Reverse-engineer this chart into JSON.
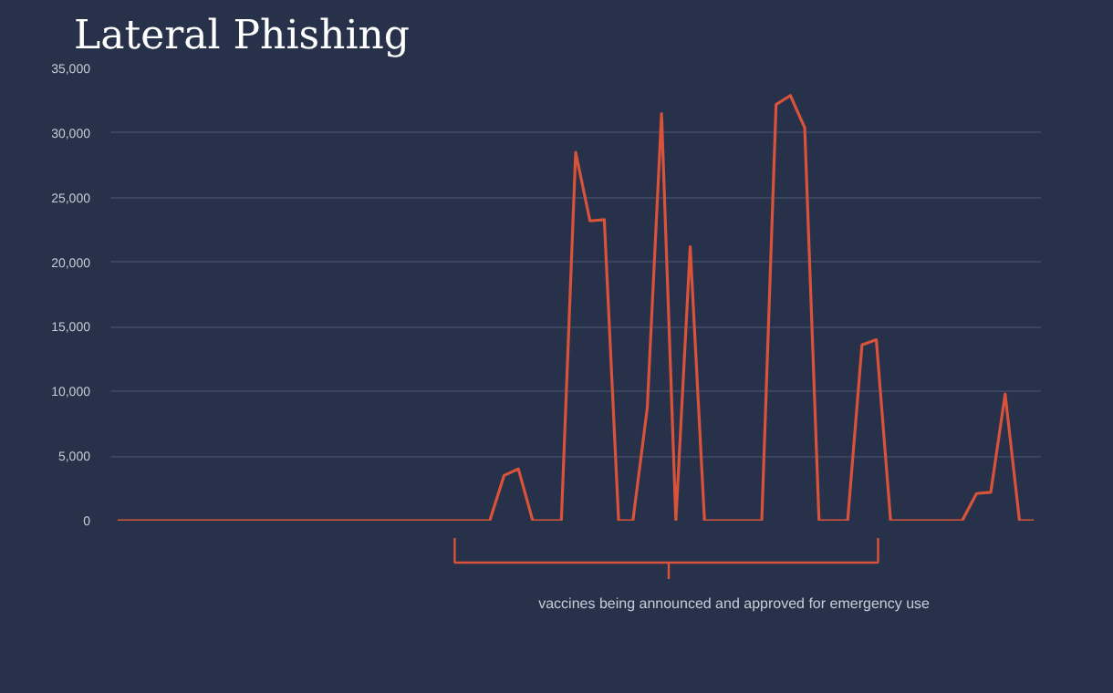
{
  "chart_data": {
    "type": "line",
    "title": "Lateral Phishing",
    "categories": [
      null,
      null,
      null,
      null,
      null,
      null,
      null,
      null,
      null,
      null,
      null,
      null,
      null,
      null,
      null,
      null,
      null,
      null,
      null,
      null,
      null,
      null,
      null,
      null,
      null,
      null,
      null,
      null,
      null,
      null,
      null,
      null,
      null,
      null,
      null,
      null,
      null,
      null,
      null,
      null,
      null,
      null,
      null,
      null,
      null,
      null,
      null,
      null,
      null,
      null,
      null,
      null,
      null,
      null,
      null,
      null,
      null,
      null,
      null,
      null,
      null,
      null,
      null,
      null,
      null
    ],
    "series": [
      {
        "color": "#d9533b",
        "values": [
          0,
          0,
          0,
          0,
          0,
          0,
          0,
          0,
          0,
          0,
          0,
          0,
          0,
          0,
          0,
          0,
          0,
          0,
          0,
          0,
          0,
          0,
          0,
          0,
          0,
          0,
          0,
          3500,
          4000,
          0,
          0,
          0,
          28500,
          23200,
          23300,
          0,
          0,
          8700,
          31500,
          0,
          21200,
          0,
          0,
          0,
          0,
          0,
          32200,
          32900,
          30400,
          0,
          0,
          0,
          13600,
          14000,
          0,
          0,
          0,
          0,
          0,
          0,
          2100,
          2200,
          9800,
          0,
          0
        ]
      }
    ],
    "ylim": [
      0,
      35000
    ],
    "yticks": [
      {
        "value": 0,
        "label": "0"
      },
      {
        "value": 5000,
        "label": "5,000"
      },
      {
        "value": 10000,
        "label": "10,000"
      },
      {
        "value": 15000,
        "label": "15,000"
      },
      {
        "value": 20000,
        "label": "20,000"
      },
      {
        "value": 25000,
        "label": "25,000"
      },
      {
        "value": 30000,
        "label": "30,000"
      },
      {
        "value": 35000,
        "label": "35,000"
      }
    ],
    "grid": "y",
    "tick_labels": "y",
    "annotations": [
      "vaccines being announced and approved for emergency use"
    ]
  }
}
